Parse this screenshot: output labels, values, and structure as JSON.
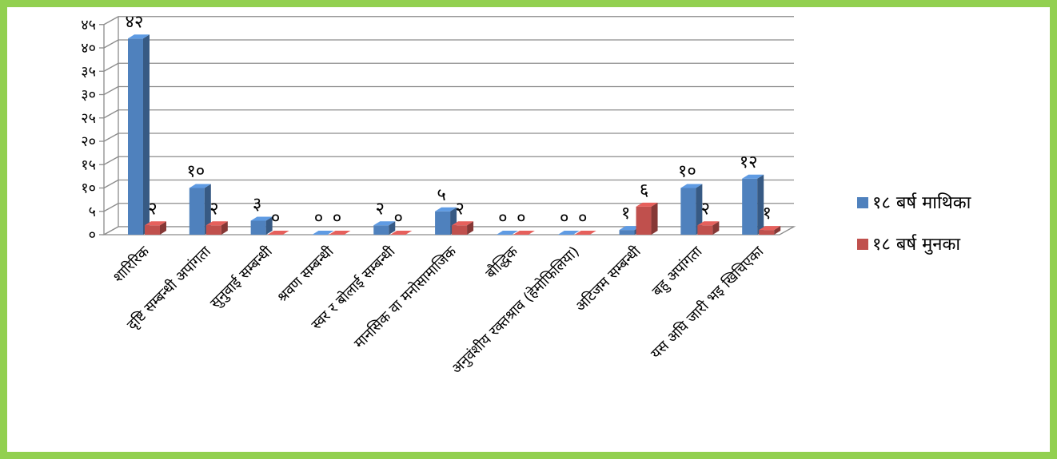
{
  "chart_data": {
    "type": "bar",
    "title": "",
    "xlabel": "",
    "ylabel": "",
    "ylim": [
      0,
      45
    ],
    "y_ticks": [
      "०",
      "५",
      "१०",
      "१५",
      "२०",
      "२५",
      "३०",
      "३५",
      "४०",
      "४५"
    ],
    "grid": true,
    "legend_position": "right",
    "categories": [
      "शारिरिक",
      "दृष्टि सम्बन्धी अपांगता",
      "सुनुवाई सम्बन्धी",
      "श्रवण सम्बन्धी",
      "स्वर र बोलाई सम्बन्धी",
      "मानसिक वा मनोसामाजिक",
      "बौद्धिक",
      "अनुवंशीय रक्तश्राव (हेमोफिलिया)",
      "अटिजम सम्बन्धी",
      "बहु अपांगता",
      "यस अघि जारी भइ खिचिएका"
    ],
    "series": [
      {
        "name": "१८ बर्ष माथिका",
        "color": "#4f81bd",
        "values": [
          42,
          10,
          3,
          0,
          2,
          5,
          0,
          0,
          1,
          10,
          12
        ],
        "labels": [
          "४२",
          "१०",
          "३",
          "०",
          "२",
          "५",
          "०",
          "०",
          "१",
          "१०",
          "१२"
        ]
      },
      {
        "name": "१८ बर्ष मुनका",
        "color": "#c0504d",
        "values": [
          2,
          2,
          0,
          0,
          0,
          2,
          0,
          0,
          6,
          2,
          1
        ],
        "labels": [
          "२",
          "२",
          "०",
          "०",
          "०",
          "२",
          "०",
          "०",
          "६",
          "२",
          "१"
        ]
      }
    ]
  }
}
